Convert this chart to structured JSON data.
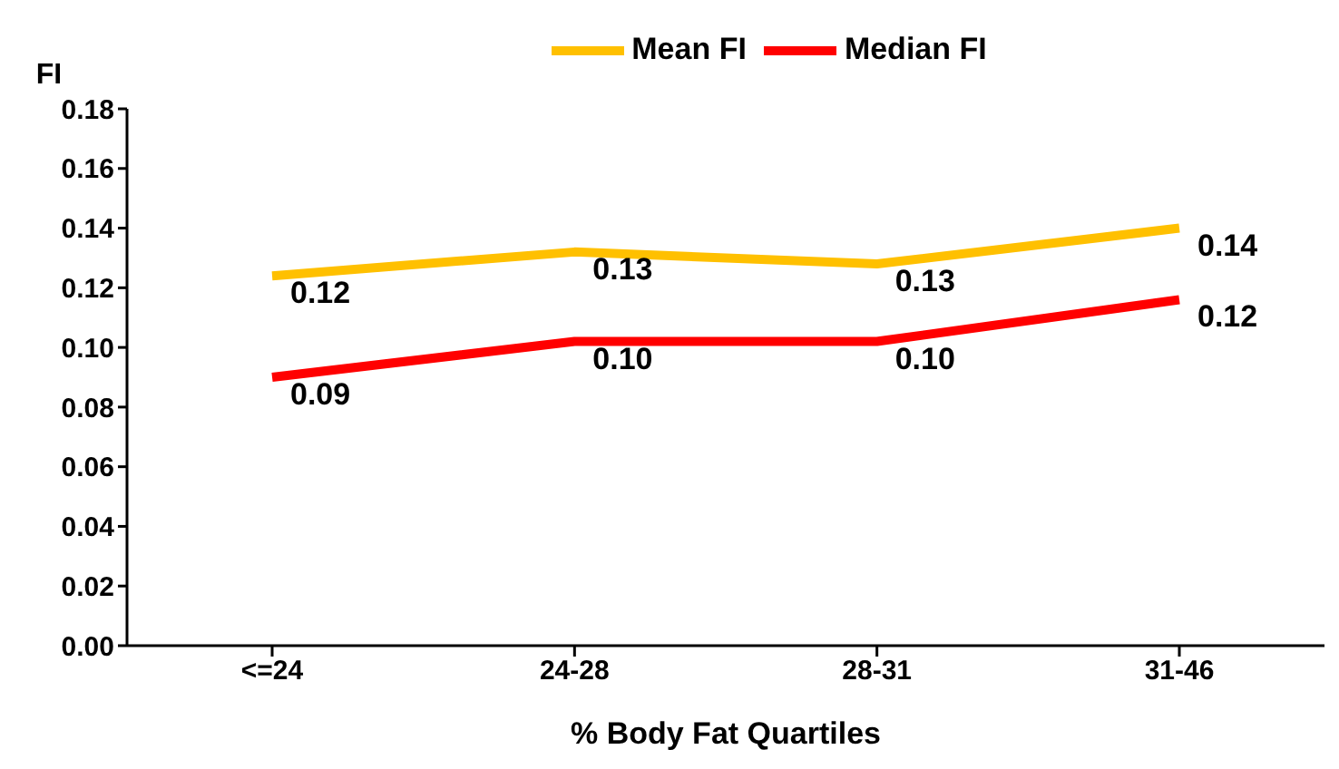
{
  "chart_data": {
    "type": "line",
    "xlabel": "% Body Fat Quartiles",
    "ylabel": "FI",
    "categories": [
      "<=24",
      "24-28",
      "28-31",
      "31-46"
    ],
    "series": [
      {
        "name": "Mean FI",
        "color": "#ffc000",
        "values": [
          0.124,
          0.132,
          0.128,
          0.14
        ],
        "value_labels": [
          "0.12",
          "0.13",
          "0.13",
          "0.14"
        ]
      },
      {
        "name": "Median FI",
        "color": "#ff0000",
        "values": [
          0.09,
          0.102,
          0.102,
          0.116
        ],
        "value_labels": [
          "0.09",
          "0.10",
          "0.10",
          "0.12"
        ]
      }
    ],
    "ylim": [
      0,
      0.18
    ],
    "yticks": [
      {
        "value": 0,
        "label": "0.00"
      },
      {
        "value": 0.02,
        "label": "0.02"
      },
      {
        "value": 0.04,
        "label": "0.04"
      },
      {
        "value": 0.06,
        "label": "0.06"
      },
      {
        "value": 0.08,
        "label": "0.08"
      },
      {
        "value": 0.1,
        "label": "0.10"
      },
      {
        "value": 0.12,
        "label": "0.12"
      },
      {
        "value": 0.14,
        "label": "0.14"
      },
      {
        "value": 0.16,
        "label": "0.16"
      },
      {
        "value": 0.18,
        "label": "0.18"
      }
    ],
    "grid": false,
    "legend": "top",
    "marker": "none",
    "line_style": "solid"
  }
}
